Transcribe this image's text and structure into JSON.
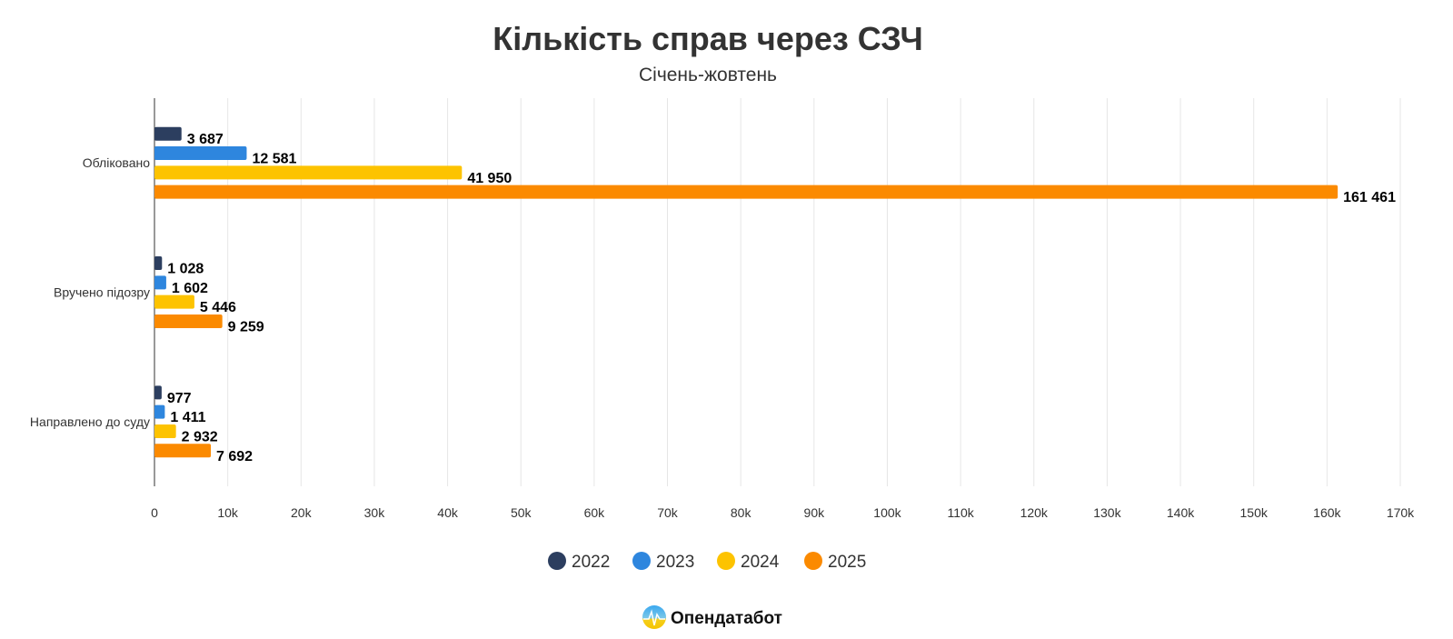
{
  "chart_data": {
    "type": "bar",
    "orientation": "horizontal",
    "title": "Кількість справ через СЗЧ",
    "subtitle": "Січень-жовтень",
    "categories": [
      "Обліковано",
      "Вручено підозру",
      "Направлено до суду"
    ],
    "series": [
      {
        "name": "2022",
        "color": "#2c3e5f",
        "values": [
          3687,
          1028,
          977
        ],
        "labels": [
          "3 687",
          "1 028",
          "977"
        ]
      },
      {
        "name": "2023",
        "color": "#2e86de",
        "values": [
          12581,
          1602,
          1411
        ],
        "labels": [
          "12 581",
          "1 602",
          "1 411"
        ]
      },
      {
        "name": "2024",
        "color": "#fdc300",
        "values": [
          41950,
          5446,
          2932
        ],
        "labels": [
          "41 950",
          "5 446",
          "2 932"
        ]
      },
      {
        "name": "2025",
        "color": "#fb8a00",
        "values": [
          161461,
          9259,
          7692
        ],
        "labels": [
          "161 461",
          "9 259",
          "7 692"
        ]
      }
    ],
    "xlim": [
      0,
      170000
    ],
    "ticks": [
      "0",
      "10k",
      "20k",
      "30k",
      "40k",
      "50k",
      "60k",
      "70k",
      "80k",
      "90k",
      "100k",
      "110k",
      "120k",
      "130k",
      "140k",
      "150k",
      "160k",
      "170k"
    ],
    "grid": true,
    "legend": "bottom"
  },
  "brand": {
    "name": "Опендатабот"
  }
}
